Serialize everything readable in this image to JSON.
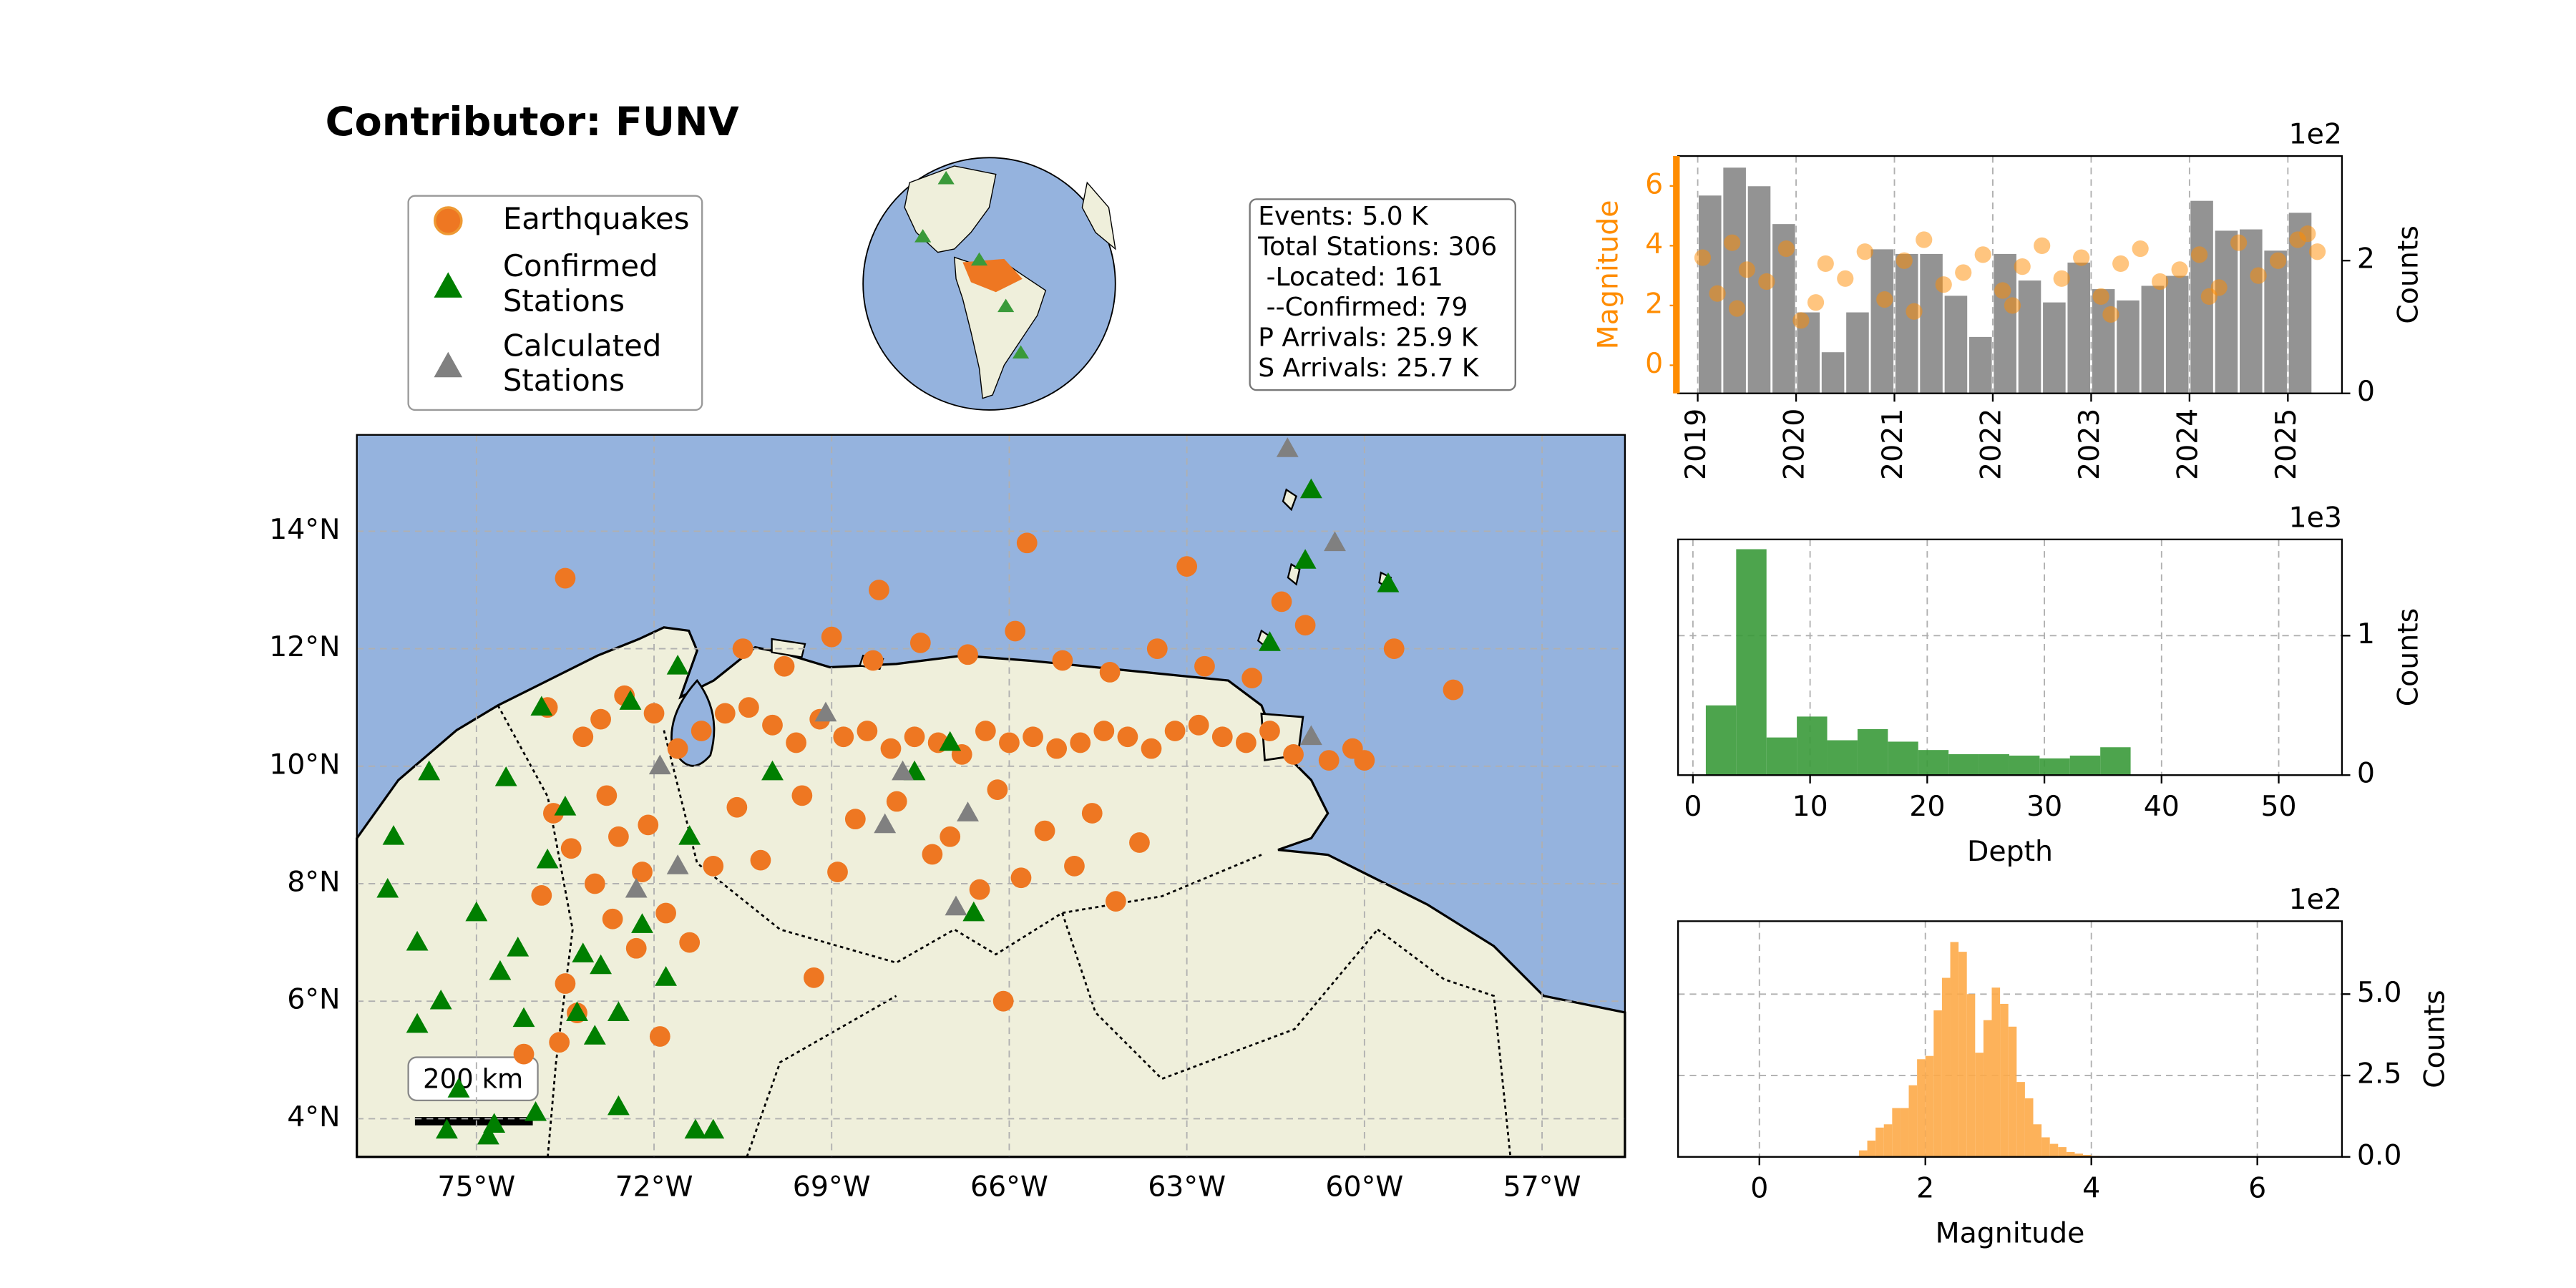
{
  "title": "Contributor: FUNV",
  "stats_box": [
    "Events: 5.0 K",
    "Total Stations: 306",
    " -Located: 161",
    " --Confirmed: 79",
    "P Arrivals: 25.9 K",
    "S Arrivals: 25.7 K"
  ],
  "scale_bar_label": "200 km",
  "chart_data": [
    {
      "type": "map",
      "xlim": [
        -77.02,
        -55.6
      ],
      "ylim": [
        3.35,
        15.64
      ],
      "xticks": [
        {
          "value": -75,
          "label": "75°W"
        },
        {
          "value": -72,
          "label": "72°W"
        },
        {
          "value": -69,
          "label": "69°W"
        },
        {
          "value": -66,
          "label": "66°W"
        },
        {
          "value": -63,
          "label": "63°W"
        },
        {
          "value": -60,
          "label": "60°W"
        },
        {
          "value": -57,
          "label": "57°W"
        }
      ],
      "yticks": [
        {
          "value": 4,
          "label": "4°N"
        },
        {
          "value": 6,
          "label": "6°N"
        },
        {
          "value": 8,
          "label": "8°N"
        },
        {
          "value": 10,
          "label": "10°N"
        },
        {
          "value": 12,
          "label": "12°N"
        },
        {
          "value": 14,
          "label": "14°N"
        }
      ],
      "grid": true,
      "series": [
        {
          "name": [
            "Earthquakes"
          ],
          "marker": "circle",
          "color": "#ee7722",
          "x": [
            -73.8,
            -73.2,
            -72.9,
            -72.5,
            -72.0,
            -71.6,
            -71.2,
            -70.8,
            -70.4,
            -70.0,
            -69.6,
            -69.2,
            -68.8,
            -68.4,
            -68.0,
            -67.6,
            -67.2,
            -66.8,
            -66.4,
            -66.0,
            -65.6,
            -65.2,
            -64.8,
            -64.4,
            -64.0,
            -63.6,
            -63.2,
            -62.8,
            -62.4,
            -62.0,
            -61.6,
            -61.2,
            -60.6,
            -60.2,
            -70.5,
            -69.8,
            -69.0,
            -68.3,
            -67.5,
            -66.7,
            -65.9,
            -65.1,
            -64.3,
            -63.5,
            -62.7,
            -61.9,
            -61.0,
            -73.7,
            -73.4,
            -73.0,
            -72.7,
            -72.3,
            -73.9,
            -73.5,
            -72.8,
            -72.2,
            -71.8,
            -73.3,
            -72.6,
            -71.4,
            -73.6,
            -72.1,
            -71.0,
            -70.6,
            -69.5,
            -68.6,
            -67.9,
            -67.0,
            -66.2,
            -65.4,
            -64.6,
            -63.8,
            -70.2,
            -68.9,
            -67.3,
            -66.5,
            -65.8,
            -64.9,
            -73.5,
            -68.2,
            -65.7,
            -63.0,
            -61.4,
            -59.5,
            -58.5,
            -74.2,
            -71.9,
            -69.3,
            -66.1,
            -64.2,
            -60.0
          ],
          "y": [
            11.0,
            10.5,
            10.8,
            11.2,
            10.9,
            10.3,
            10.6,
            10.9,
            11.0,
            10.7,
            10.4,
            10.8,
            10.5,
            10.6,
            10.3,
            10.5,
            10.4,
            10.2,
            10.6,
            10.4,
            10.5,
            10.3,
            10.4,
            10.6,
            10.5,
            10.3,
            10.6,
            10.7,
            10.5,
            10.4,
            10.6,
            10.2,
            10.1,
            10.3,
            12.0,
            11.7,
            12.2,
            11.8,
            12.1,
            11.9,
            12.3,
            11.8,
            11.6,
            12.0,
            11.7,
            11.5,
            12.4,
            9.2,
            8.6,
            8.0,
            7.4,
            6.9,
            7.8,
            6.3,
            9.5,
            8.2,
            7.5,
            5.8,
            8.8,
            7.0,
            5.3,
            9.0,
            8.3,
            9.3,
            9.5,
            9.1,
            9.4,
            8.8,
            9.6,
            8.9,
            9.2,
            8.7,
            8.4,
            8.2,
            8.5,
            7.9,
            8.1,
            8.3,
            13.2,
            13.0,
            13.8,
            13.4,
            12.8,
            12.0,
            11.3,
            5.1,
            5.4,
            6.4,
            6.0,
            7.7,
            10.1
          ]
        },
        {
          "name": [
            "Confirmed",
            "Stations"
          ],
          "marker": "triangle",
          "color": "#007f00",
          "x": [
            -76.4,
            -76.5,
            -76.0,
            -75.6,
            -75.0,
            -74.6,
            -74.2,
            -73.8,
            -73.5,
            -73.2,
            -72.9,
            -72.6,
            -72.2,
            -71.8,
            -71.4,
            -76.0,
            -75.3,
            -74.7,
            -74.0,
            -73.3,
            -72.4,
            -71.6,
            -75.5,
            -74.8,
            -73.0,
            -71.3,
            -70.0,
            -67.6,
            -67.0,
            -66.6,
            -73.9,
            -74.5,
            -60.9,
            -61.0,
            -61.6,
            -59.6,
            -72.6,
            -71.0,
            -75.8,
            -74.3
          ],
          "y": [
            8.8,
            7.9,
            7.0,
            6.0,
            7.5,
            6.5,
            5.7,
            8.4,
            9.3,
            6.8,
            6.6,
            5.8,
            7.3,
            6.4,
            8.8,
            5.6,
            4.5,
            3.9,
            4.1,
            5.8,
            11.1,
            11.7,
            3.8,
            3.7,
            5.4,
            3.8,
            9.9,
            9.9,
            10.4,
            7.5,
            11.0,
            9.8,
            14.7,
            13.5,
            12.1,
            13.1,
            4.2,
            3.8,
            9.9,
            6.9
          ]
        },
        {
          "name": [
            "Calculated",
            "Stations"
          ],
          "marker": "triangle",
          "color": "#808080",
          "x": [
            -71.9,
            -69.1,
            -67.8,
            -66.7,
            -71.6,
            -68.1,
            -66.9,
            -60.9,
            -61.3,
            -60.5,
            -72.3
          ],
          "y": [
            10.0,
            10.9,
            9.9,
            9.2,
            8.3,
            9.0,
            7.6,
            10.5,
            15.4,
            13.8,
            7.9
          ]
        }
      ]
    },
    {
      "type": "timeline",
      "xlim": [
        2018.8,
        2025.55
      ],
      "xticks": [
        2019,
        2020,
        2021,
        2022,
        2023,
        2024,
        2025
      ],
      "grid": true,
      "ylabel": "Magnitude",
      "ylim": [
        -0.94,
        7.0
      ],
      "yticks": [
        0,
        2,
        4,
        6
      ],
      "y2label": "Counts",
      "y2offset": "1e2",
      "y2lim": [
        0,
        3.575
      ],
      "y2ticks": [
        0,
        2
      ],
      "series": [
        {
          "axis": "y2",
          "color": "#808080",
          "bins": [
            2019.0,
            2019.25,
            2019.5,
            2019.75,
            2020.0,
            2020.25,
            2020.5,
            2020.75,
            2021.0,
            2021.25,
            2021.5,
            2021.75,
            2022.0,
            2022.25,
            2022.5,
            2022.75,
            2023.0,
            2023.25,
            2023.5,
            2023.75,
            2024.0,
            2024.25,
            2024.5,
            2024.75,
            2025.0,
            2025.25
          ],
          "values": [
            2.98,
            3.4,
            3.12,
            2.55,
            1.22,
            0.62,
            1.22,
            2.17,
            2.1,
            2.1,
            1.47,
            0.85,
            2.1,
            1.7,
            1.37,
            1.97,
            1.57,
            1.4,
            1.62,
            1.77,
            2.9,
            2.45,
            2.47,
            2.15,
            2.72
          ]
        },
        {
          "axis": "y",
          "color": "#ff8c00",
          "x": [
            2019.05,
            2019.2,
            2019.35,
            2019.5,
            2019.7,
            2019.9,
            2020.05,
            2020.3,
            2020.5,
            2020.7,
            2020.9,
            2021.1,
            2021.3,
            2021.5,
            2021.7,
            2021.9,
            2022.1,
            2022.3,
            2022.5,
            2022.7,
            2022.9,
            2023.1,
            2023.3,
            2023.5,
            2023.7,
            2023.9,
            2024.1,
            2024.3,
            2024.5,
            2024.7,
            2024.9,
            2025.1,
            2025.3,
            2019.4,
            2020.2,
            2021.2,
            2022.2,
            2023.2,
            2024.2,
            2025.2
          ],
          "values": [
            3.6,
            2.4,
            4.1,
            3.2,
            2.8,
            3.9,
            1.5,
            3.4,
            2.9,
            3.8,
            2.2,
            3.5,
            4.2,
            2.7,
            3.1,
            3.7,
            2.5,
            3.3,
            4.0,
            2.9,
            3.6,
            2.3,
            3.4,
            3.9,
            2.8,
            3.2,
            3.7,
            2.6,
            4.1,
            3.0,
            3.5,
            4.2,
            3.8,
            1.9,
            2.1,
            1.8,
            2.0,
            1.7,
            2.3,
            4.4
          ]
        }
      ]
    },
    {
      "type": "histogram",
      "xlabel": "Depth",
      "ylabel": "Counts",
      "offset": "1e3",
      "color": "#3a9a3a",
      "grid": true,
      "xlim": [
        -1.27,
        55.4
      ],
      "xticks": [
        0,
        10,
        20,
        30,
        40,
        50
      ],
      "ylim": [
        0,
        1.69
      ],
      "yticks": [
        0,
        1
      ],
      "bins": [
        1.1,
        3.69,
        6.28,
        8.87,
        11.46,
        14.05,
        16.64,
        19.23,
        21.82,
        24.41,
        27.0,
        29.59,
        32.18,
        34.77,
        37.36
      ],
      "values": [
        0.5,
        1.62,
        0.27,
        0.42,
        0.25,
        0.33,
        0.24,
        0.18,
        0.15,
        0.15,
        0.14,
        0.12,
        0.14,
        0.2
      ]
    },
    {
      "type": "histogram",
      "xlabel": "Magnitude",
      "ylabel": "Counts",
      "offset": "1e2",
      "color": "#fdaa48",
      "grid": true,
      "xlim": [
        -0.98,
        7.02
      ],
      "xticks": [
        0,
        2,
        4,
        6
      ],
      "ylim": [
        0,
        7.24
      ],
      "yticks": [
        {
          "value": 0,
          "label": "0.0"
        },
        2.5,
        {
          "value": 5,
          "label": "5.0"
        }
      ],
      "bins": [
        1.2,
        1.3,
        1.4,
        1.5,
        1.6,
        1.7,
        1.8,
        1.9,
        2.0,
        2.1,
        2.2,
        2.3,
        2.4,
        2.5,
        2.6,
        2.7,
        2.8,
        2.9,
        3.0,
        3.1,
        3.2,
        3.3,
        3.4,
        3.5,
        3.6,
        3.7,
        3.8,
        3.9,
        4.0,
        4.1,
        4.2,
        4.3
      ],
      "values": [
        0.2,
        0.5,
        0.9,
        1.0,
        1.5,
        1.5,
        2.2,
        3.0,
        3.1,
        4.5,
        5.5,
        6.6,
        6.3,
        5.0,
        3.2,
        4.2,
        5.2,
        4.7,
        4.0,
        2.3,
        1.8,
        1.0,
        0.6,
        0.4,
        0.3,
        0.15,
        0.1,
        0.06,
        0.03,
        0.02,
        0.02
      ]
    }
  ]
}
